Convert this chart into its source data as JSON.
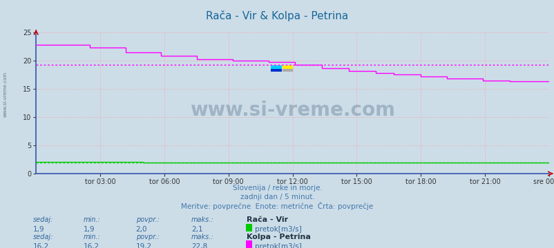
{
  "title": "Rača - Vir & Kolpa - Petrina",
  "title_color": "#1a6699",
  "bg_color": "#ccdde8",
  "plot_bg_color": "#ccdde8",
  "x_labels": [
    "tor 03:00",
    "tor 06:00",
    "tor 09:00",
    "tor 12:00",
    "tor 15:00",
    "tor 18:00",
    "tor 21:00",
    "sre 00:00"
  ],
  "ylim": [
    0,
    25
  ],
  "yticks": [
    0,
    5,
    10,
    15,
    20,
    25
  ],
  "grid_color": "#ff9999",
  "subtitle1": "Slovenija / reke in morje.",
  "subtitle2": "zadnji dan / 5 minut.",
  "subtitle3": "Meritve: povprečne  Enote: metrične  Črta: povprečje",
  "subtitle_color": "#4477aa",
  "watermark": "www.si-vreme.com",
  "watermark_color": "#1a3a5c",
  "watermark_alpha": 0.25,
  "raca_color": "#00cc00",
  "kolpa_color": "#ff00ff",
  "raca_avg": 2.0,
  "kolpa_avg": 19.2,
  "legend1_label": "Rača - Vir",
  "legend1_sub": "pretok[m3/s]",
  "legend1_sedaj": "1,9",
  "legend1_min": "1,9",
  "legend1_povpr": "2,0",
  "legend1_maks": "2,1",
  "legend2_label": "Kolpa - Petrina",
  "legend2_sub": "pretok[m3/s]",
  "legend2_sedaj": "16,2",
  "legend2_min": "16,2",
  "legend2_povpr": "19,2",
  "legend2_maks": "22,8",
  "n_points": 288,
  "left_watermark": "www.si-vreme.com"
}
